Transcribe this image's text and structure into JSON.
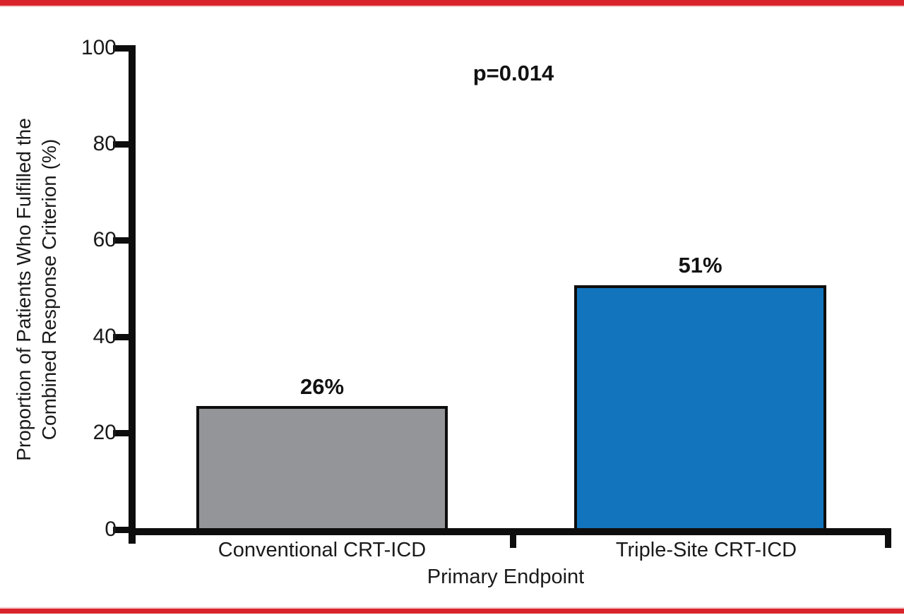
{
  "figure": {
    "background_color": "#FFFFFF",
    "border_rule_color": "#D9242B",
    "axis_color": "#0D0D0D"
  },
  "chart_data": {
    "type": "bar",
    "title": "",
    "categories": [
      "Conventional CRT-ICD",
      "Triple-Site CRT-ICD"
    ],
    "values": [
      26,
      51
    ],
    "bar_labels": [
      "26%",
      "51%"
    ],
    "bar_colors": [
      "#939598",
      "#1274BC"
    ],
    "bar_edge_color": "#0D0D0D",
    "annotation": "p=0.014",
    "xlabel": "Primary Endpoint",
    "ylabel": "Proportion of Patients Who Fulfilled the Combined Response Criterion (%)",
    "ylabel_line1": "Proportion of Patients Who Fulfilled the",
    "ylabel_line2": "Combined Response Criterion (%)",
    "ylim": [
      0,
      100
    ],
    "yticks": [
      0,
      20,
      40,
      60,
      80,
      100
    ],
    "ytick_labels_top_down": [
      "100",
      "80",
      "60",
      "40",
      "20",
      "0"
    ],
    "grid": "off",
    "legend": "none"
  }
}
